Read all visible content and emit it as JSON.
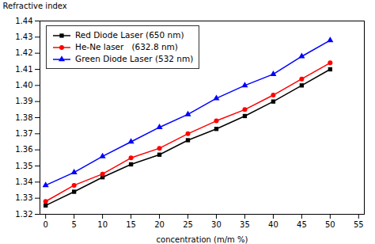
{
  "chart_data": {
    "type": "line",
    "xlabel": "concentration (m/m %)",
    "ylabel": "Refractive index",
    "x": [
      0,
      5,
      10,
      15,
      20,
      25,
      30,
      35,
      40,
      45,
      50
    ],
    "series": [
      {
        "name": "Red Diode Laser (650 nm)",
        "color": "#000000",
        "marker": "square",
        "values": [
          1.3255,
          1.334,
          1.343,
          1.351,
          1.357,
          1.366,
          1.373,
          1.381,
          1.39,
          1.4,
          1.41
        ]
      },
      {
        "name": "He-Ne laser   (632.8 nm)",
        "color": "#ff0000",
        "marker": "circle",
        "values": [
          1.328,
          1.338,
          1.345,
          1.355,
          1.361,
          1.37,
          1.378,
          1.385,
          1.394,
          1.404,
          1.414
        ]
      },
      {
        "name": "Green Diode Laser (532 nm)",
        "color": "#0000ff",
        "marker": "triangle",
        "values": [
          1.338,
          1.346,
          1.356,
          1.365,
          1.374,
          1.382,
          1.392,
          1.4,
          1.407,
          1.418,
          1.428
        ]
      }
    ],
    "xlim": [
      -1,
      56
    ],
    "ylim": [
      1.32,
      1.44
    ],
    "xticks": [
      0,
      5,
      10,
      15,
      20,
      25,
      30,
      35,
      40,
      45,
      50,
      55
    ],
    "yticks": [
      1.32,
      1.33,
      1.34,
      1.35,
      1.36,
      1.37,
      1.38,
      1.39,
      {
        "value": 1.4,
        "label": "1.40"
      },
      1.41,
      1.42,
      1.43,
      1.44
    ],
    "grid": false,
    "legend": "upper left"
  }
}
